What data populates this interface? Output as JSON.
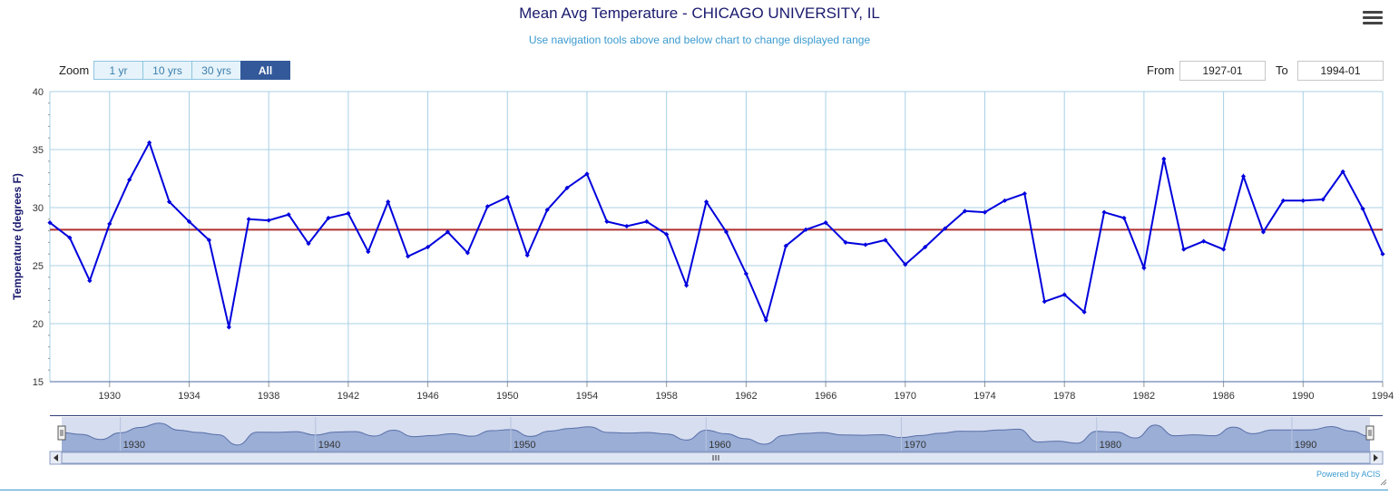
{
  "header": {
    "title": "Mean Avg Temperature - CHICAGO UNIVERSITY, IL",
    "subtitle": "Use navigation tools above and below chart to change displayed range"
  },
  "zoom": {
    "label": "Zoom",
    "buttons": [
      "1 yr",
      "10 yrs",
      "30 yrs",
      "All"
    ],
    "active": "All"
  },
  "range": {
    "from_label": "From",
    "from_value": "1927-01",
    "to_label": "To",
    "to_value": "1994-01"
  },
  "credits": "Powered by ACIS",
  "colors": {
    "series": "#0000dd",
    "mean_line": "#b03030",
    "grid": "#a8d0e6",
    "navigator_fill": "#9aaed6",
    "navigator_bg": "#d6def0"
  },
  "chart_data": {
    "type": "line",
    "ylabel": "Temperature (degrees F)",
    "xlabel": "",
    "ylim": [
      15,
      40
    ],
    "yticks": [
      15,
      20,
      25,
      30,
      35,
      40
    ],
    "xlim": [
      1927,
      1994
    ],
    "xticks": [
      1930,
      1934,
      1938,
      1942,
      1946,
      1950,
      1954,
      1958,
      1962,
      1966,
      1970,
      1974,
      1978,
      1982,
      1986,
      1990,
      1994
    ],
    "navigator_ticks": [
      1930,
      1940,
      1950,
      1960,
      1970,
      1980,
      1990
    ],
    "grid": true,
    "mean_value": 28.1,
    "series": [
      {
        "x": [
          1927,
          1928,
          1929,
          1930,
          1931,
          1932,
          1933,
          1934,
          1935,
          1936,
          1937,
          1938,
          1939,
          1940,
          1941,
          1942,
          1943,
          1944,
          1945,
          1946,
          1947,
          1948,
          1949,
          1950,
          1951,
          1952,
          1953,
          1954,
          1955,
          1956,
          1957,
          1958,
          1959,
          1960,
          1961,
          1962,
          1963,
          1964,
          1965,
          1966,
          1967,
          1968,
          1969,
          1970,
          1971,
          1972,
          1973,
          1974,
          1975,
          1976,
          1977,
          1978,
          1979,
          1980,
          1981,
          1982,
          1983,
          1984,
          1985,
          1986,
          1987,
          1988,
          1989,
          1990,
          1991,
          1992,
          1993,
          1994
        ],
        "values": [
          28.7,
          27.4,
          23.7,
          28.6,
          32.4,
          35.6,
          30.5,
          28.8,
          27.2,
          19.7,
          29.0,
          28.9,
          29.4,
          26.9,
          29.1,
          29.5,
          26.2,
          30.5,
          25.8,
          26.6,
          27.9,
          26.1,
          30.1,
          30.9,
          25.9,
          29.8,
          31.7,
          32.9,
          28.8,
          28.4,
          28.8,
          27.7,
          23.3,
          30.5,
          27.9,
          24.3,
          20.3,
          26.7,
          28.1,
          28.7,
          27.0,
          26.8,
          27.2,
          25.1,
          26.6,
          28.2,
          29.7,
          29.6,
          30.6,
          31.2,
          21.9,
          22.5,
          21.0,
          29.6,
          29.1,
          24.8,
          34.2,
          26.4,
          27.1,
          26.4,
          32.7,
          27.9,
          30.6,
          30.6,
          30.7,
          33.1,
          29.9,
          26.0
        ]
      }
    ]
  }
}
